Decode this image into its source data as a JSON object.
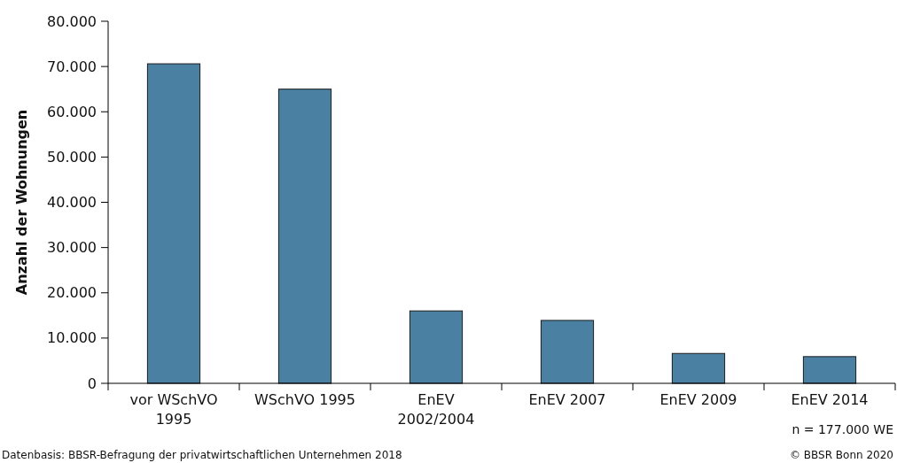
{
  "chart_data": {
    "type": "bar",
    "ylabel": "Anzahl der Wohnungen",
    "categories": [
      "vor WSchVO\n1995",
      "WSchVO 1995",
      "EnEV\n2002/2004",
      "EnEV 2007",
      "EnEV 2009",
      "EnEV 2014"
    ],
    "values": [
      70600,
      65000,
      16000,
      13900,
      6600,
      5900
    ],
    "color": "#4a80a1",
    "ylim": [
      0,
      80000
    ],
    "yticks": [
      {
        "value": 0,
        "label": "0"
      },
      {
        "value": 10000,
        "label": "10.000"
      },
      {
        "value": 20000,
        "label": "20.000"
      },
      {
        "value": 30000,
        "label": "30.000"
      },
      {
        "value": 40000,
        "label": "40.000"
      },
      {
        "value": 50000,
        "label": "50.000"
      },
      {
        "value": 60000,
        "label": "60.000"
      },
      {
        "value": 70000,
        "label": "70.000"
      },
      {
        "value": 80000,
        "label": "80.000"
      }
    ],
    "grid": false,
    "annotations": [
      "n = 177.000 WE",
      "Datenbasis: BBSR-Befragung der privatwirtschaftlichen Unternehmen 2018",
      "© BBSR Bonn 2020"
    ]
  }
}
